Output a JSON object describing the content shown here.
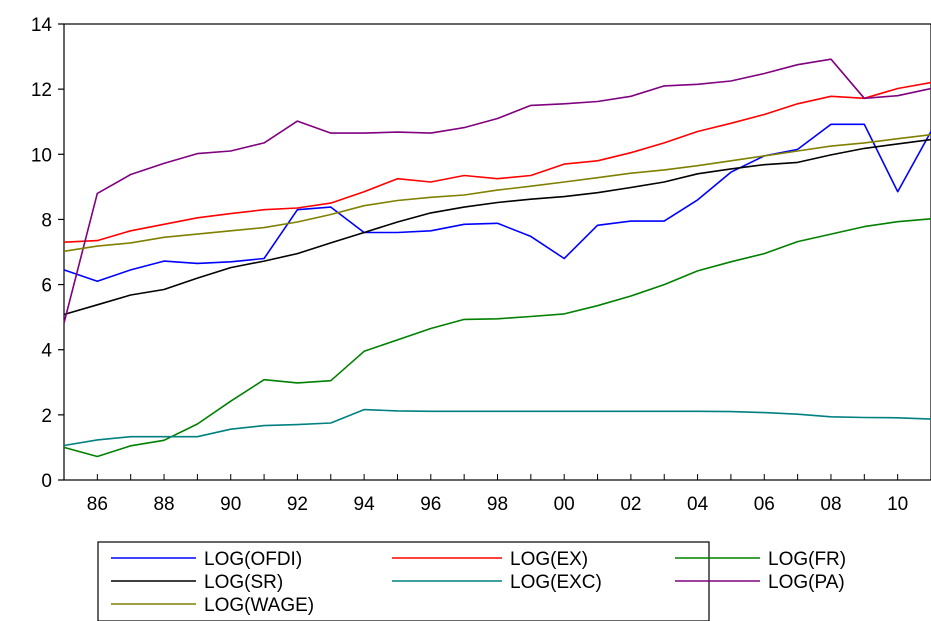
{
  "chart_data": {
    "type": "line",
    "title": "",
    "xlabel": "",
    "ylabel": "",
    "x": [
      1985,
      1986,
      1987,
      1988,
      1989,
      1990,
      1991,
      1992,
      1993,
      1994,
      1995,
      1996,
      1997,
      1998,
      1999,
      2000,
      2001,
      2002,
      2003,
      2004,
      2005,
      2006,
      2007,
      2008,
      2009,
      2010,
      2011
    ],
    "xlim": [
      1985,
      2011
    ],
    "ylim": [
      0,
      14
    ],
    "yticks": [
      0,
      2,
      4,
      6,
      8,
      10,
      12,
      14
    ],
    "ytick_labels": [
      "0",
      "2",
      "4",
      "6",
      "8",
      "10",
      "12",
      "14"
    ],
    "xtick_values": [
      1986,
      1988,
      1990,
      1992,
      1994,
      1996,
      1998,
      2000,
      2002,
      2004,
      2006,
      2008,
      2010
    ],
    "xtick_labels": [
      "86",
      "88",
      "90",
      "92",
      "94",
      "96",
      "98",
      "00",
      "02",
      "04",
      "06",
      "08",
      "10"
    ],
    "grid": false,
    "legend_position": "bottom",
    "series": [
      {
        "name": "LOG(OFDI)",
        "color": "#0000ff",
        "values": [
          6.45,
          6.1,
          6.45,
          6.72,
          6.65,
          6.7,
          6.8,
          8.3,
          8.38,
          7.6,
          7.6,
          7.65,
          7.85,
          7.88,
          7.48,
          6.8,
          7.82,
          7.95,
          7.95,
          8.6,
          9.45,
          9.95,
          10.15,
          10.92,
          10.92,
          8.85,
          10.7
        ]
      },
      {
        "name": "LOG(EX)",
        "color": "#ff0000",
        "values": [
          7.3,
          7.35,
          7.65,
          7.85,
          8.05,
          8.18,
          8.3,
          8.35,
          8.5,
          8.85,
          9.25,
          9.15,
          9.35,
          9.25,
          9.35,
          9.7,
          9.8,
          10.05,
          10.35,
          10.7,
          10.95,
          11.22,
          11.55,
          11.78,
          11.72,
          12.02,
          12.2
        ]
      },
      {
        "name": "LOG(FR)",
        "color": "#008000",
        "values": [
          1.0,
          0.72,
          1.05,
          1.22,
          1.72,
          2.42,
          3.08,
          2.98,
          3.05,
          3.95,
          4.3,
          4.65,
          4.93,
          4.95,
          5.02,
          5.1,
          5.35,
          5.65,
          6.0,
          6.42,
          6.7,
          6.95,
          7.32,
          7.55,
          7.78,
          7.93,
          8.02
        ]
      },
      {
        "name": "LOG(SR)",
        "color": "#000000",
        "values": [
          5.08,
          5.38,
          5.68,
          5.85,
          6.2,
          6.52,
          6.72,
          6.95,
          7.28,
          7.6,
          7.92,
          8.2,
          8.38,
          8.52,
          8.62,
          8.7,
          8.82,
          8.98,
          9.15,
          9.4,
          9.55,
          9.68,
          9.75,
          9.98,
          10.18,
          10.32,
          10.45
        ]
      },
      {
        "name": "LOG(EXC)",
        "color": "#008080",
        "values": [
          1.06,
          1.23,
          1.33,
          1.33,
          1.33,
          1.56,
          1.67,
          1.7,
          1.75,
          2.16,
          2.12,
          2.11,
          2.11,
          2.11,
          2.11,
          2.11,
          2.11,
          2.11,
          2.11,
          2.11,
          2.1,
          2.07,
          2.02,
          1.94,
          1.92,
          1.91,
          1.87
        ]
      },
      {
        "name": "LOG(PA)",
        "color": "#800080",
        "values": [
          4.82,
          8.8,
          9.38,
          9.72,
          10.02,
          10.1,
          10.35,
          11.02,
          10.65,
          10.65,
          10.68,
          10.65,
          10.82,
          11.1,
          11.5,
          11.55,
          11.62,
          11.78,
          12.1,
          12.15,
          12.25,
          12.48,
          12.75,
          12.92,
          11.72,
          11.8,
          12.02
        ]
      },
      {
        "name": "LOG(WAGE)",
        "color": "#808000",
        "values": [
          7.02,
          7.18,
          7.28,
          7.45,
          7.55,
          7.65,
          7.75,
          7.92,
          8.15,
          8.42,
          8.58,
          8.68,
          8.75,
          8.9,
          9.02,
          9.15,
          9.28,
          9.42,
          9.52,
          9.65,
          9.8,
          9.95,
          10.1,
          10.25,
          10.35,
          10.48,
          10.6
        ]
      }
    ]
  }
}
